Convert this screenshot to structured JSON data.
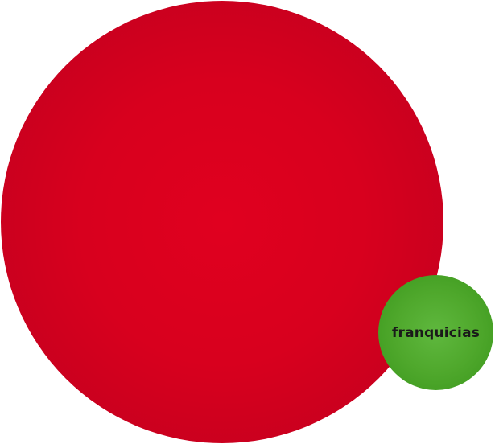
{
  "bubbles": {
    "main": {
      "label": "",
      "color": "#d8001e"
    },
    "secondary": {
      "label": "franquicias",
      "color": "#4fa82c"
    }
  }
}
